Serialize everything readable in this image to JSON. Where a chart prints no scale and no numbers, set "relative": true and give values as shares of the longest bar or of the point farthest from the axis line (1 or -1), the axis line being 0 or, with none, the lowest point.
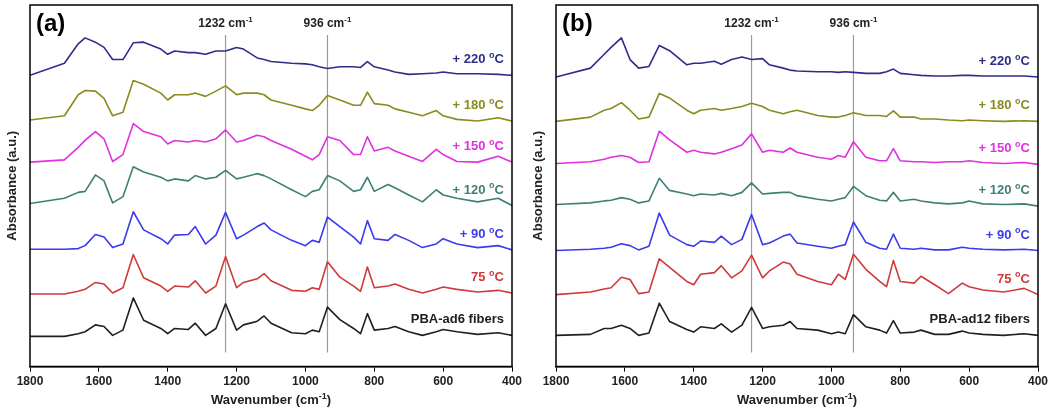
{
  "chart_data": [
    {
      "type": "line",
      "title": "(a)",
      "xlabel": "Wavenumber (cm$^{-1}$)",
      "ylabel": "Absorbance (a.u.)",
      "relative": true,
      "xlim": [
        1800,
        400
      ],
      "xticks": [
        1800,
        1600,
        1400,
        1200,
        1000,
        800,
        600,
        400
      ],
      "ref_lines": [
        {
          "axis": "x",
          "value": 1232,
          "label": "1232 cm$^{-1}$",
          "color": "#9a9a9a"
        },
        {
          "axis": "x",
          "value": 936,
          "label": "936 cm$^{-1}$",
          "color": "#9a9a9a"
        }
      ],
      "x": [
        1800,
        1700,
        1660,
        1640,
        1610,
        1585,
        1560,
        1530,
        1500,
        1470,
        1420,
        1400,
        1380,
        1340,
        1320,
        1290,
        1260,
        1232,
        1200,
        1180,
        1140,
        1120,
        1100,
        1040,
        1000,
        980,
        960,
        936,
        900,
        860,
        840,
        820,
        800,
        760,
        740,
        700,
        660,
        620,
        600,
        560,
        500,
        440,
        400
      ],
      "series": [
        {
          "name": "+ 220 $^{o}$C",
          "color": "#2e2e8a",
          "values": [
            0.886,
            0.923,
            0.982,
            1.0,
            0.987,
            0.971,
            0.934,
            0.934,
            0.985,
            0.987,
            0.966,
            0.95,
            0.96,
            0.955,
            0.955,
            0.95,
            0.96,
            0.96,
            0.971,
            0.966,
            0.939,
            0.934,
            0.928,
            0.923,
            0.921,
            0.918,
            0.912,
            0.907,
            0.912,
            0.912,
            0.91,
            0.928,
            0.912,
            0.902,
            0.896,
            0.889,
            0.891,
            0.893,
            0.896,
            0.891,
            0.891,
            0.889,
            0.886
          ]
        },
        {
          "name": "+ 180 $^{o}$C",
          "color": "#8a8a20",
          "values": [
            0.75,
            0.763,
            0.827,
            0.84,
            0.838,
            0.816,
            0.763,
            0.774,
            0.87,
            0.859,
            0.832,
            0.811,
            0.827,
            0.827,
            0.832,
            0.822,
            0.838,
            0.854,
            0.827,
            0.832,
            0.832,
            0.827,
            0.811,
            0.795,
            0.784,
            0.779,
            0.795,
            0.825,
            0.811,
            0.795,
            0.795,
            0.835,
            0.8,
            0.795,
            0.784,
            0.774,
            0.763,
            0.779,
            0.763,
            0.752,
            0.747,
            0.757,
            0.747
          ]
        },
        {
          "name": "+ 150 $^{o}$C",
          "color": "#e030e0",
          "values": [
            0.622,
            0.629,
            0.667,
            0.688,
            0.715,
            0.693,
            0.624,
            0.645,
            0.739,
            0.715,
            0.699,
            0.677,
            0.688,
            0.683,
            0.688,
            0.683,
            0.693,
            0.72,
            0.683,
            0.688,
            0.704,
            0.699,
            0.688,
            0.661,
            0.64,
            0.629,
            0.645,
            0.699,
            0.688,
            0.645,
            0.645,
            0.699,
            0.656,
            0.667,
            0.656,
            0.64,
            0.624,
            0.661,
            0.645,
            0.624,
            0.622,
            0.64,
            0.622
          ]
        },
        {
          "name": "+ 120 $^{o}$C",
          "color": "#3f7f75",
          "values": [
            0.496,
            0.512,
            0.53,
            0.533,
            0.583,
            0.565,
            0.498,
            0.517,
            0.608,
            0.592,
            0.576,
            0.565,
            0.571,
            0.565,
            0.581,
            0.571,
            0.576,
            0.597,
            0.571,
            0.576,
            0.587,
            0.581,
            0.571,
            0.538,
            0.517,
            0.533,
            0.538,
            0.581,
            0.565,
            0.533,
            0.538,
            0.576,
            0.533,
            0.554,
            0.544,
            0.522,
            0.501,
            0.538,
            0.522,
            0.512,
            0.501,
            0.512,
            0.49
          ]
        },
        {
          "name": "+ 90 $^{o}$C",
          "color": "#3a3af0",
          "values": [
            0.357,
            0.357,
            0.359,
            0.368,
            0.402,
            0.394,
            0.362,
            0.373,
            0.471,
            0.416,
            0.389,
            0.373,
            0.4,
            0.402,
            0.426,
            0.373,
            0.4,
            0.469,
            0.389,
            0.4,
            0.426,
            0.437,
            0.416,
            0.384,
            0.368,
            0.384,
            0.378,
            0.455,
            0.426,
            0.394,
            0.373,
            0.444,
            0.389,
            0.384,
            0.402,
            0.384,
            0.362,
            0.373,
            0.389,
            0.373,
            0.362,
            0.368,
            0.355
          ]
        },
        {
          "name": "75 $^{o}$C",
          "color": "#d03a3a",
          "values": [
            0.221,
            0.221,
            0.229,
            0.235,
            0.256,
            0.251,
            0.224,
            0.24,
            0.341,
            0.27,
            0.245,
            0.229,
            0.245,
            0.242,
            0.261,
            0.224,
            0.245,
            0.335,
            0.24,
            0.256,
            0.267,
            0.283,
            0.261,
            0.232,
            0.229,
            0.24,
            0.235,
            0.319,
            0.272,
            0.245,
            0.229,
            0.303,
            0.24,
            0.245,
            0.251,
            0.235,
            0.224,
            0.235,
            0.242,
            0.235,
            0.227,
            0.232,
            0.224
          ]
        },
        {
          "name": "PBA-ad6 fibers",
          "color": "#202020",
          "values": [
            0.092,
            0.092,
            0.1,
            0.106,
            0.127,
            0.122,
            0.095,
            0.111,
            0.209,
            0.141,
            0.116,
            0.1,
            0.116,
            0.113,
            0.132,
            0.095,
            0.116,
            0.191,
            0.111,
            0.127,
            0.138,
            0.154,
            0.132,
            0.103,
            0.1,
            0.111,
            0.106,
            0.181,
            0.143,
            0.116,
            0.1,
            0.161,
            0.111,
            0.116,
            0.122,
            0.106,
            0.095,
            0.106,
            0.113,
            0.106,
            0.098,
            0.103,
            0.095
          ]
        }
      ]
    },
    {
      "type": "line",
      "title": "(b)",
      "xlabel": "Wavenumber (cm$^{-1}$)",
      "ylabel": "Absorbance (a.u.)",
      "relative": true,
      "xlim": [
        1800,
        400
      ],
      "xticks": [
        1800,
        1600,
        1400,
        1200,
        1000,
        800,
        600,
        400
      ],
      "ref_lines": [
        {
          "axis": "x",
          "value": 1232,
          "label": "1232 cm$^{-1}$",
          "color": "#9a9a9a"
        },
        {
          "axis": "x",
          "value": 936,
          "label": "936 cm$^{-1}$",
          "color": "#9a9a9a"
        }
      ],
      "x": [
        1800,
        1700,
        1660,
        1640,
        1610,
        1585,
        1560,
        1530,
        1500,
        1470,
        1420,
        1400,
        1380,
        1340,
        1320,
        1290,
        1260,
        1232,
        1200,
        1180,
        1140,
        1120,
        1100,
        1040,
        1000,
        980,
        960,
        936,
        900,
        860,
        840,
        820,
        800,
        760,
        740,
        700,
        660,
        620,
        600,
        560,
        500,
        440,
        400
      ],
      "series": [
        {
          "name": "+ 220 $^{o}$C",
          "color": "#2e2e8a",
          "values": [
            0.881,
            0.908,
            0.95,
            0.971,
            1.0,
            0.934,
            0.908,
            0.913,
            0.977,
            0.961,
            0.918,
            0.923,
            0.923,
            0.929,
            0.92,
            0.934,
            0.942,
            0.934,
            0.937,
            0.918,
            0.908,
            0.902,
            0.899,
            0.897,
            0.897,
            0.895,
            0.897,
            0.895,
            0.892,
            0.892,
            0.897,
            0.905,
            0.892,
            0.888,
            0.886,
            0.884,
            0.884,
            0.886,
            0.886,
            0.884,
            0.884,
            0.884,
            0.881
          ]
        },
        {
          "name": "+ 180 $^{o}$C",
          "color": "#8a8a20",
          "values": [
            0.746,
            0.759,
            0.78,
            0.785,
            0.803,
            0.78,
            0.753,
            0.759,
            0.831,
            0.817,
            0.78,
            0.769,
            0.78,
            0.785,
            0.78,
            0.785,
            0.791,
            0.801,
            0.791,
            0.78,
            0.769,
            0.775,
            0.78,
            0.764,
            0.759,
            0.759,
            0.764,
            0.772,
            0.764,
            0.764,
            0.761,
            0.778,
            0.759,
            0.759,
            0.753,
            0.753,
            0.75,
            0.748,
            0.75,
            0.748,
            0.746,
            0.748,
            0.746
          ]
        },
        {
          "name": "+ 150 $^{o}$C",
          "color": "#e030e0",
          "values": [
            0.618,
            0.623,
            0.631,
            0.637,
            0.642,
            0.637,
            0.621,
            0.623,
            0.716,
            0.69,
            0.652,
            0.658,
            0.652,
            0.647,
            0.652,
            0.663,
            0.674,
            0.708,
            0.652,
            0.658,
            0.652,
            0.665,
            0.652,
            0.637,
            0.631,
            0.642,
            0.637,
            0.684,
            0.637,
            0.626,
            0.626,
            0.663,
            0.626,
            0.623,
            0.623,
            0.621,
            0.623,
            0.623,
            0.626,
            0.621,
            0.618,
            0.621,
            0.615
          ]
        },
        {
          "name": "+ 120 $^{o}$C",
          "color": "#3f7f75",
          "values": [
            0.493,
            0.498,
            0.504,
            0.506,
            0.514,
            0.509,
            0.498,
            0.504,
            0.573,
            0.536,
            0.525,
            0.52,
            0.525,
            0.522,
            0.527,
            0.52,
            0.53,
            0.559,
            0.525,
            0.527,
            0.53,
            0.53,
            0.52,
            0.509,
            0.504,
            0.509,
            0.514,
            0.548,
            0.52,
            0.506,
            0.504,
            0.53,
            0.504,
            0.509,
            0.504,
            0.498,
            0.495,
            0.498,
            0.504,
            0.495,
            0.493,
            0.495,
            0.488
          ]
        },
        {
          "name": "+ 90 $^{o}$C",
          "color": "#3a3af0",
          "values": [
            0.353,
            0.357,
            0.36,
            0.363,
            0.374,
            0.368,
            0.355,
            0.366,
            0.467,
            0.4,
            0.371,
            0.366,
            0.382,
            0.378,
            0.397,
            0.371,
            0.387,
            0.463,
            0.371,
            0.376,
            0.397,
            0.403,
            0.376,
            0.366,
            0.36,
            0.366,
            0.371,
            0.44,
            0.378,
            0.36,
            0.357,
            0.403,
            0.36,
            0.357,
            0.36,
            0.355,
            0.355,
            0.363,
            0.36,
            0.357,
            0.355,
            0.357,
            0.353
          ]
        },
        {
          "name": "75 $^{o}$C",
          "color": "#d03a3a",
          "values": [
            0.219,
            0.227,
            0.236,
            0.24,
            0.272,
            0.265,
            0.222,
            0.227,
            0.328,
            0.302,
            0.259,
            0.249,
            0.281,
            0.286,
            0.307,
            0.27,
            0.291,
            0.339,
            0.27,
            0.291,
            0.318,
            0.312,
            0.281,
            0.259,
            0.249,
            0.281,
            0.265,
            0.342,
            0.296,
            0.259,
            0.243,
            0.323,
            0.259,
            0.254,
            0.275,
            0.249,
            0.222,
            0.254,
            0.243,
            0.233,
            0.227,
            0.238,
            0.219
          ]
        },
        {
          "name": "PBA-ad12 fibers",
          "color": "#202020",
          "values": [
            0.095,
            0.098,
            0.116,
            0.116,
            0.126,
            0.116,
            0.095,
            0.102,
            0.193,
            0.137,
            0.113,
            0.105,
            0.121,
            0.116,
            0.13,
            0.105,
            0.126,
            0.18,
            0.116,
            0.121,
            0.126,
            0.137,
            0.116,
            0.111,
            0.1,
            0.105,
            0.1,
            0.158,
            0.121,
            0.111,
            0.102,
            0.14,
            0.102,
            0.105,
            0.111,
            0.098,
            0.098,
            0.108,
            0.102,
            0.098,
            0.095,
            0.1,
            0.095
          ]
        }
      ]
    }
  ]
}
